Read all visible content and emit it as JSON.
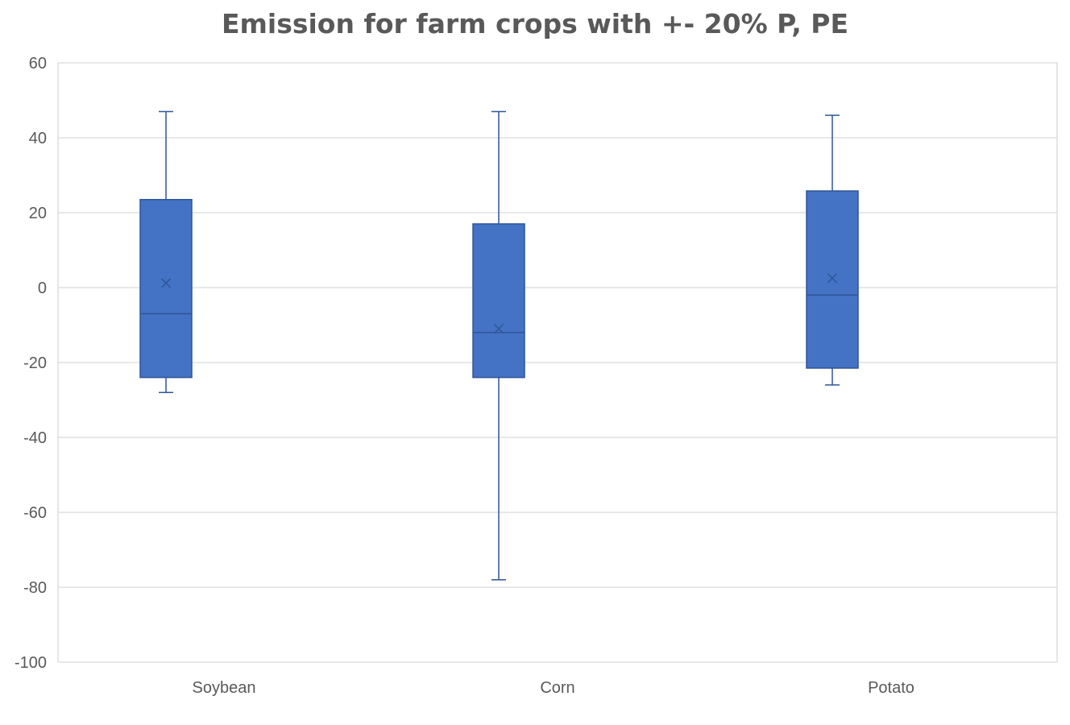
{
  "chart_data": {
    "type": "box",
    "title": "Emission for farm crops with +- 20% P, PE",
    "xlabel": "",
    "ylabel": "",
    "ylim": [
      -100,
      60
    ],
    "ytick_step": 20,
    "yticks": [
      "60",
      "40",
      "20",
      "0",
      "-20",
      "-40",
      "-60",
      "-80",
      "-100"
    ],
    "grid": true,
    "legend": "none",
    "categories": [
      "Soybean",
      "Corn",
      "Potato"
    ],
    "boxes": [
      {
        "category": "Soybean",
        "min": -28,
        "q1": -24,
        "median": -7,
        "mean": 1.2,
        "q3": 23.5,
        "max": 47
      },
      {
        "category": "Corn",
        "min": -78,
        "q1": -24,
        "median": -12,
        "mean": -11,
        "q3": 17,
        "max": 47
      },
      {
        "category": "Potato",
        "min": -26,
        "q1": -21.5,
        "median": -2,
        "mean": 2.5,
        "q3": 25.8,
        "max": 46
      }
    ],
    "colors": {
      "box_fill": "#4472C4",
      "box_stroke": "#2F5597",
      "whisker": "#2F5597",
      "grid": "#D9D9D9",
      "text": "#595959"
    }
  }
}
